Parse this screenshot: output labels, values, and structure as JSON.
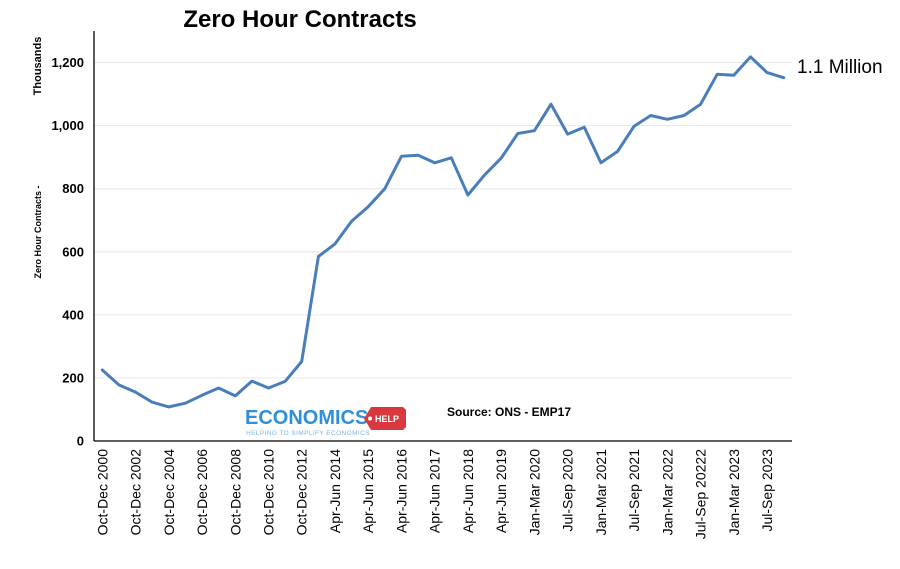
{
  "chart_data": {
    "type": "line",
    "title": "Zero Hour Contracts",
    "ylabel_units": "Thousands",
    "ylabel": "Zero Hour Contracts -",
    "xlabel": "",
    "ylim": [
      0,
      1300
    ],
    "yticks": [
      0,
      200,
      400,
      600,
      800,
      1000,
      1200
    ],
    "ytick_labels": [
      "0",
      "200",
      "400",
      "600",
      "800",
      "1,000",
      "1,200"
    ],
    "grid": true,
    "line_color": "#4a7ebb",
    "categories": [
      "Oct-Dec 2000",
      "",
      "Oct-Dec 2002",
      "",
      "Oct-Dec 2004",
      "",
      "Oct-Dec 2006",
      "",
      "Oct-Dec 2008",
      "",
      "Oct-Dec 2010",
      "",
      "Oct-Dec 2012",
      "",
      "Apr-Jun 2014",
      "",
      "Apr-Jun 2015",
      "",
      "Apr-Jun 2016",
      "",
      "Apr-Jun 2017",
      "",
      "Apr-Jun 2018",
      "",
      "Apr-Jun 2019",
      "",
      "Jan-Mar 2020",
      "",
      "Jul-Sep 2020",
      "",
      "Jan-Mar 2021",
      "",
      "Jul-Sep 2021",
      "",
      "Jan-Mar 2022",
      "",
      "Jul-Sep 20222",
      "",
      "Jan-Mar 2023",
      "",
      "Jul-Sep 2023",
      ""
    ],
    "values": [
      225,
      178,
      155,
      123,
      108,
      120,
      145,
      168,
      143,
      190,
      168,
      189,
      252,
      585,
      625,
      697,
      743,
      800,
      903,
      906,
      882,
      898,
      780,
      843,
      897,
      975,
      984,
      1068,
      973,
      995,
      882,
      918,
      998,
      1032,
      1020,
      1032,
      1068,
      1163,
      1160,
      1218,
      1168,
      1152
    ],
    "annotation": "1.1 Million",
    "source": "Source: ONS - EMP17"
  },
  "logo": {
    "name": "ECONOMICS",
    "badge": "HELP",
    "tagline": "HELPING TO SIMPLIFY ECONOMICS",
    "color": "#2f8fd8",
    "badge_color": "#d9393e"
  }
}
